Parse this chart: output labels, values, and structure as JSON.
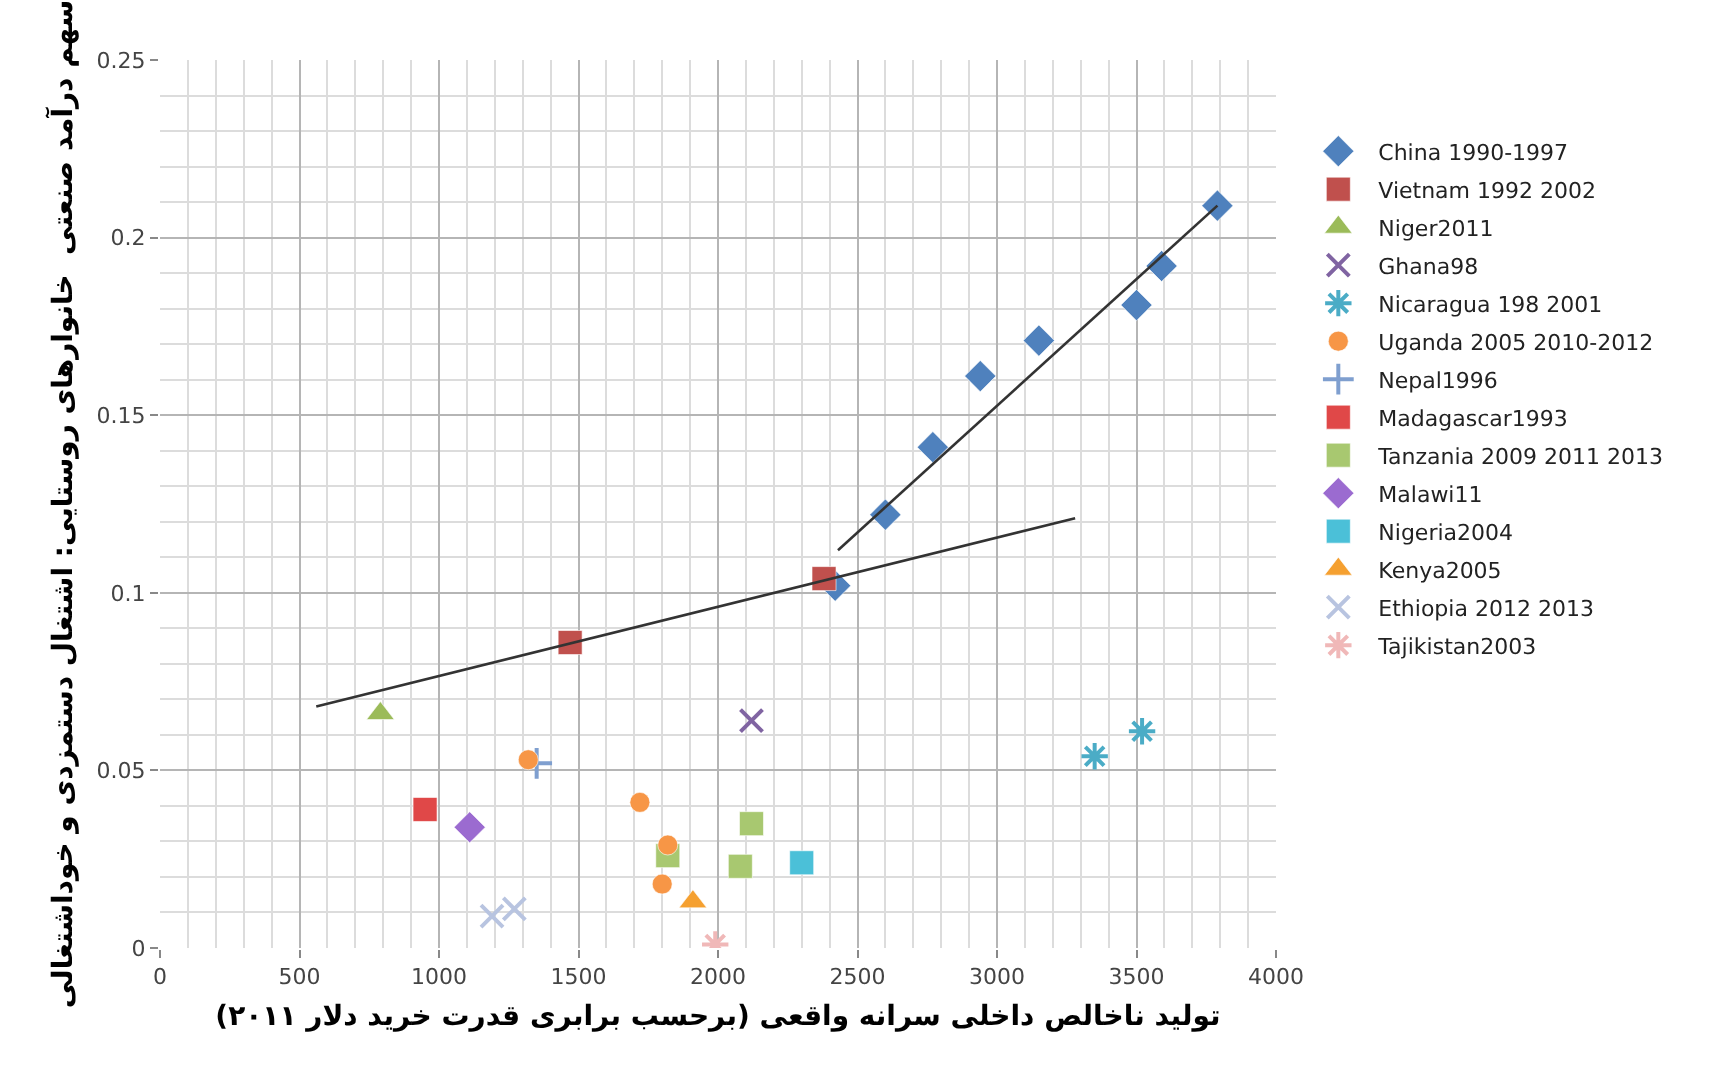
{
  "chart_data": {
    "type": "scatter",
    "xlabel": "تولید ناخالص داخلی سرانه واقعی (برحسب برابری قدرت خرید دلار ۲۰۱۱)",
    "ylabel": "سهم درآمد صنعتی  خانوارهای روستایی: اشتغال دستمزدی و خوداشتغالی",
    "xlim": [
      0,
      4000
    ],
    "xticks": [
      0,
      500,
      1000,
      1500,
      2000,
      2500,
      3000,
      3500,
      4000
    ],
    "ylim": [
      0,
      0.25
    ],
    "yticks": [
      0,
      0.05,
      0.1,
      0.15,
      0.2,
      0.25
    ],
    "grid": true,
    "legend": "right",
    "series": [
      {
        "name": "China 1990-1997",
        "color": "#4f81bd",
        "marker": "diamond",
        "x": [
          2420,
          2600,
          2770,
          2940,
          3150,
          3500,
          3590,
          3790
        ],
        "values": [
          0.102,
          0.122,
          0.141,
          0.161,
          0.171,
          0.181,
          0.192,
          0.209
        ]
      },
      {
        "name": "Vietnam 1992 2002",
        "color": "#c0504d",
        "marker": "square",
        "x": [
          1470,
          2380
        ],
        "values": [
          0.086,
          0.104
        ]
      },
      {
        "name": "Niger2011",
        "color": "#9bbb59",
        "marker": "triangle",
        "x": [
          790
        ],
        "values": [
          0.066
        ]
      },
      {
        "name": "Ghana98",
        "color": "#8064a2",
        "marker": "x",
        "x": [
          2120
        ],
        "values": [
          0.064
        ]
      },
      {
        "name": "Nicaragua 198 2001",
        "color": "#4bacc6",
        "marker": "cross",
        "x": [
          3350,
          3520
        ],
        "values": [
          0.054,
          0.061
        ]
      },
      {
        "name": "Uganda 2005 2010-2012",
        "color": "#f79646",
        "marker": "circle",
        "x": [
          1320,
          1720,
          1820,
          1800
        ],
        "values": [
          0.053,
          0.041,
          0.029,
          0.018
        ]
      },
      {
        "name": "Nepal1996",
        "color": "#7f9fcf",
        "marker": "plus",
        "x": [
          1350
        ],
        "values": [
          0.052
        ]
      },
      {
        "name": "Madagascar1993",
        "color": "#e04848",
        "marker": "square",
        "x": [
          950
        ],
        "values": [
          0.039
        ]
      },
      {
        "name": "Tanzania 2009 2011 2013",
        "color": "#a8c870",
        "marker": "square",
        "x": [
          1820,
          2120,
          2080
        ],
        "values": [
          0.026,
          0.035,
          0.023
        ]
      },
      {
        "name": "Malawi11",
        "color": "#9b6bd0",
        "marker": "diamond",
        "x": [
          1110
        ],
        "values": [
          0.034
        ]
      },
      {
        "name": "Nigeria2004",
        "color": "#4bc0d8",
        "marker": "square",
        "x": [
          2300
        ],
        "values": [
          0.024
        ]
      },
      {
        "name": "Kenya2005",
        "color": "#f5a030",
        "marker": "triangle",
        "x": [
          1910
        ],
        "values": [
          0.013
        ]
      },
      {
        "name": "Ethiopia 2012 2013",
        "color": "#b8c4e0",
        "marker": "x",
        "x": [
          1190,
          1270
        ],
        "values": [
          0.009,
          0.011
        ]
      },
      {
        "name": "Tajikistan2003",
        "color": "#f0b8b8",
        "marker": "cross",
        "x": [
          1990
        ],
        "values": [
          0.001
        ]
      },
      {
        "type": "line",
        "color": "#333333",
        "marker": "none",
        "x": [
          2430,
          3790
        ],
        "values": [
          0.112,
          0.209
        ]
      },
      {
        "type": "line",
        "color": "#333333",
        "marker": "none",
        "x": [
          560,
          3280
        ],
        "values": [
          0.068,
          0.121
        ]
      }
    ]
  }
}
